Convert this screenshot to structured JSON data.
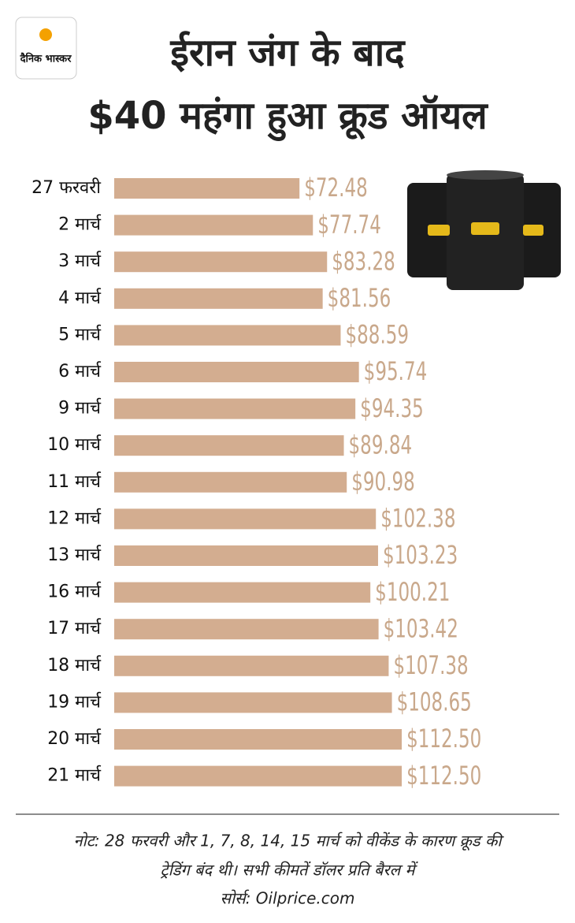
{
  "logo": "दैनिक भास्कर",
  "chart_data": {
    "type": "hbar",
    "title": [
      "ईरान जंग के बाद",
      "$40 महंगा हुआ क्रूड ऑयल"
    ],
    "categories": [
      "27 फरवरी",
      "2 मार्च",
      "3 मार्च",
      "4 मार्च",
      "5 मार्च",
      "6 मार्च",
      "9 मार्च",
      "10 मार्च",
      "11 मार्च",
      "12 मार्च",
      "13 मार्च",
      "16 मार्च",
      "17 मार्च",
      "18 मार्च",
      "19 मार्च",
      "20 मार्च",
      "21 मार्च"
    ],
    "values": [
      72.48,
      77.74,
      83.28,
      81.56,
      88.59,
      95.74,
      94.35,
      89.84,
      90.98,
      102.38,
      103.23,
      100.21,
      103.42,
      107.38,
      108.65,
      112.5,
      112.5
    ],
    "value_labels": [
      "$72.48",
      "$77.74",
      "$83.28",
      "$81.56",
      "$88.59",
      "$95.74",
      "$94.35",
      "$89.84",
      "$90.98",
      "$102.38",
      "$103.23",
      "$100.21",
      "$103.42",
      "$107.38",
      "$108.65",
      "$112.50",
      "$112.50"
    ],
    "color": "#d3ad90",
    "label_color": "#c9a88b",
    "note": [
      "नोट: 28 फरवरी और 1, 7, 8, 14, 15 मार्च को वीकेंड के कारण क्रूड की",
      "ट्रेडिंग बंद थी। सभी कीमतें डॉलर प्रति बैरल में"
    ],
    "source": "सोर्स: Oilprice.com"
  }
}
